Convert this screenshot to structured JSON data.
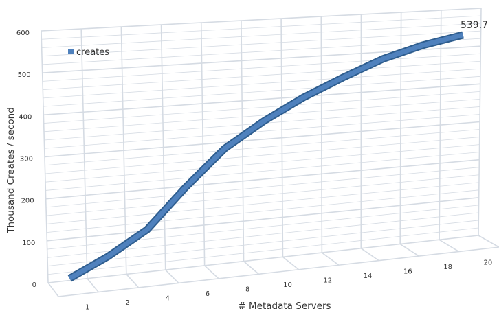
{
  "chart_data": {
    "type": "line",
    "title": "",
    "xlabel": "# Metadata Servers",
    "ylabel": "Thousand Creates / second",
    "categories": [
      "1",
      "2",
      "4",
      "6",
      "8",
      "10",
      "12",
      "14",
      "16",
      "18",
      "20"
    ],
    "series": [
      {
        "name": "creates",
        "values": [
          12,
          55,
          110,
          205,
          292,
          353,
          405,
          449,
          490,
          519,
          539.7
        ]
      }
    ],
    "ylim": [
      0,
      600
    ],
    "y_ticks": [
      "0",
      "100",
      "200",
      "300",
      "400",
      "500",
      "600"
    ],
    "data_labels": [
      {
        "category": "20",
        "text": "539.7"
      }
    ],
    "grid": true,
    "legend_position": "top-left",
    "style": "3d-perspective",
    "colors": {
      "series": "#4f81bd",
      "series_edge": "#2e5d8e",
      "grid": "#d5dbe3"
    }
  }
}
